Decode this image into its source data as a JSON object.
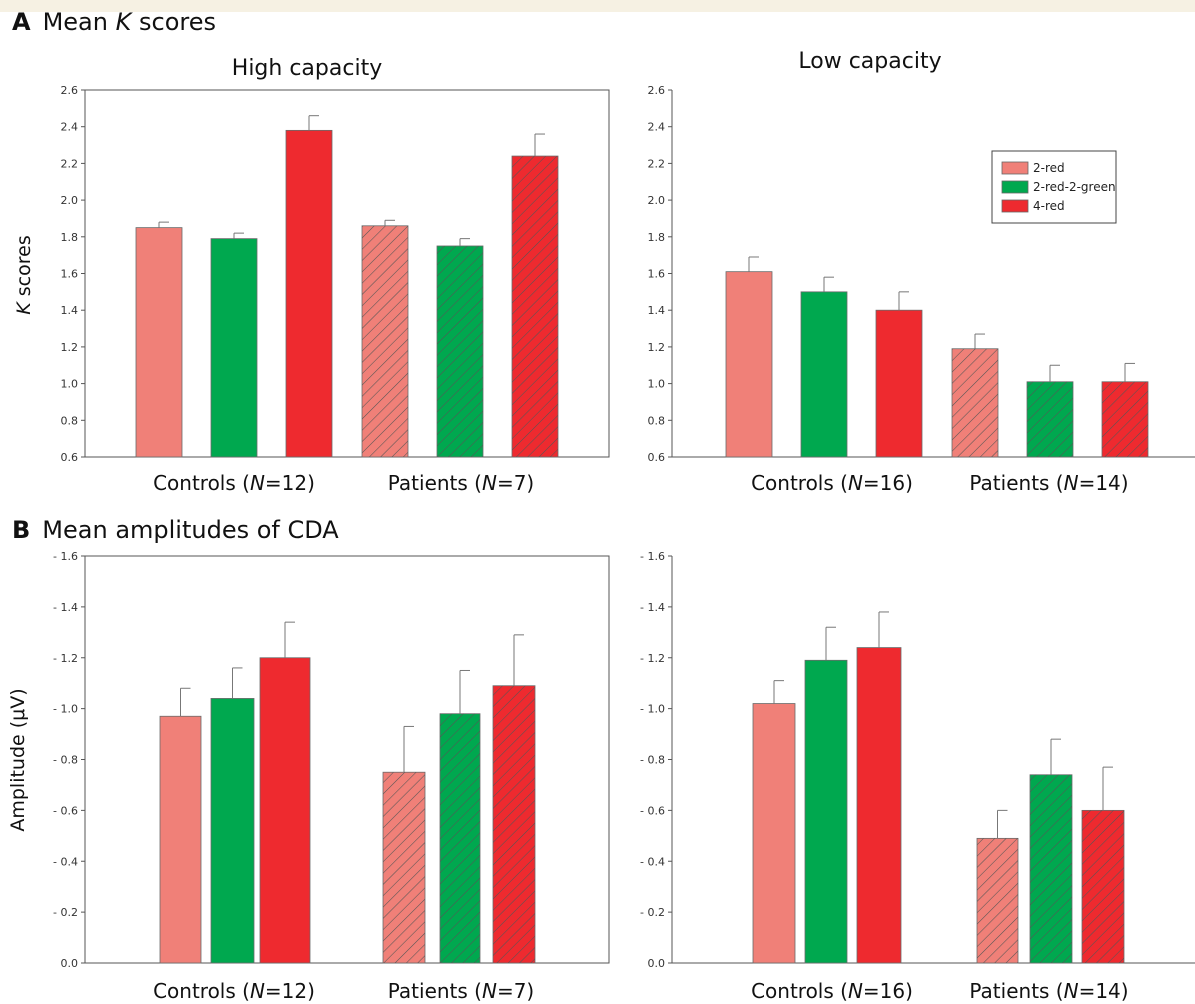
{
  "sections": {
    "a": {
      "letter": "A",
      "title_pre": "Mean ",
      "title_italic": "K",
      "title_post": " scores"
    },
    "b": {
      "letter": "B",
      "title": "Mean amplitudes of CDA"
    }
  },
  "colors": {
    "2-red": "#f08078",
    "2-red-2-green": "#00a84f",
    "4-red": "#ee2a2f",
    "hatch": "#555555",
    "axis": "#555555"
  },
  "chart_data": [
    {
      "id": "a-high",
      "type": "bar",
      "title": "High capacity",
      "ylabel": "K scores",
      "ylim": [
        0.6,
        2.6
      ],
      "yticks": [
        0.6,
        0.8,
        1.0,
        1.2,
        1.4,
        1.6,
        1.8,
        2.0,
        2.2,
        2.4,
        2.6
      ],
      "ytick_labels": [
        "0.6",
        "0.8",
        "1.0",
        "1.2",
        "1.4",
        "1.6",
        "1.8",
        "2.0",
        "2.2",
        "2.4",
        "2.6"
      ],
      "groups": [
        {
          "label_pre": "Controls (",
          "label_n": "N",
          "label_post": "=12)",
          "hatched": false,
          "values": [
            1.85,
            1.79,
            2.38
          ],
          "errors": [
            0.03,
            0.03,
            0.08
          ]
        },
        {
          "label_pre": "Patients (",
          "label_n": "N",
          "label_post": "=7)",
          "hatched": true,
          "values": [
            1.86,
            1.75,
            2.24
          ],
          "errors": [
            0.03,
            0.04,
            0.12
          ]
        }
      ],
      "series": [
        "2-red",
        "2-red-2-green",
        "4-red"
      ]
    },
    {
      "id": "a-low",
      "type": "bar",
      "title": "Low capacity",
      "ylim": [
        0.6,
        2.6
      ],
      "yticks": [
        0.6,
        0.8,
        1.0,
        1.2,
        1.4,
        1.6,
        1.8,
        2.0,
        2.2,
        2.4,
        2.6
      ],
      "ytick_labels": [
        "0.6",
        "0.8",
        "1.0",
        "1.2",
        "1.4",
        "1.6",
        "1.8",
        "2.0",
        "2.2",
        "2.4",
        "2.6"
      ],
      "legend": [
        "2-red",
        "2-red-2-green",
        "4-red"
      ],
      "groups": [
        {
          "label_pre": "Controls (",
          "label_n": "N",
          "label_post": "=16)",
          "hatched": false,
          "values": [
            1.61,
            1.5,
            1.4
          ],
          "errors": [
            0.08,
            0.08,
            0.1
          ]
        },
        {
          "label_pre": "Patients (",
          "label_n": "N",
          "label_post": "=14)",
          "hatched": true,
          "values": [
            1.19,
            1.01,
            1.01
          ],
          "errors": [
            0.08,
            0.09,
            0.1
          ]
        }
      ],
      "series": [
        "2-red",
        "2-red-2-green",
        "4-red"
      ]
    },
    {
      "id": "b-high",
      "type": "bar",
      "ylabel": "Amplitude (μV)",
      "ylim": [
        0.0,
        1.6
      ],
      "yticks": [
        0.0,
        0.2,
        0.4,
        0.6,
        0.8,
        1.0,
        1.2,
        1.4,
        1.6
      ],
      "ytick_labels": [
        "0.0",
        "- 0.2",
        "- 0.4",
        "- 0.6",
        "- 0.8",
        "- 1.0",
        "- 1.2",
        "- 1.4",
        "- 1.6"
      ],
      "groups": [
        {
          "label_pre": "Controls (",
          "label_n": "N",
          "label_post": "=12)",
          "hatched": false,
          "values": [
            0.97,
            1.04,
            1.2
          ],
          "errors": [
            0.11,
            0.12,
            0.14
          ]
        },
        {
          "label_pre": "Patients (",
          "label_n": "N",
          "label_post": "=7)",
          "hatched": true,
          "values": [
            0.75,
            0.98,
            1.09
          ],
          "errors": [
            0.18,
            0.17,
            0.2
          ]
        }
      ],
      "series": [
        "2-red",
        "2-red-2-green",
        "4-red"
      ]
    },
    {
      "id": "b-low",
      "type": "bar",
      "ylim": [
        0.0,
        1.6
      ],
      "yticks": [
        0.0,
        0.2,
        0.4,
        0.6,
        0.8,
        1.0,
        1.2,
        1.4,
        1.6
      ],
      "ytick_labels": [
        "0.0",
        "- 0.2",
        "- 0.4",
        "- 0.6",
        "- 0.8",
        "- 1.0",
        "- 1.2",
        "- 1.4",
        "- 1.6"
      ],
      "groups": [
        {
          "label_pre": "Controls (",
          "label_n": "N",
          "label_post": "=16)",
          "hatched": false,
          "values": [
            1.02,
            1.19,
            1.24
          ],
          "errors": [
            0.09,
            0.13,
            0.14
          ]
        },
        {
          "label_pre": "Patients (",
          "label_n": "N",
          "label_post": "=14)",
          "hatched": true,
          "values": [
            0.49,
            0.74,
            0.6
          ],
          "errors": [
            0.11,
            0.14,
            0.17
          ]
        }
      ],
      "series": [
        "2-red",
        "2-red-2-green",
        "4-red"
      ]
    }
  ]
}
